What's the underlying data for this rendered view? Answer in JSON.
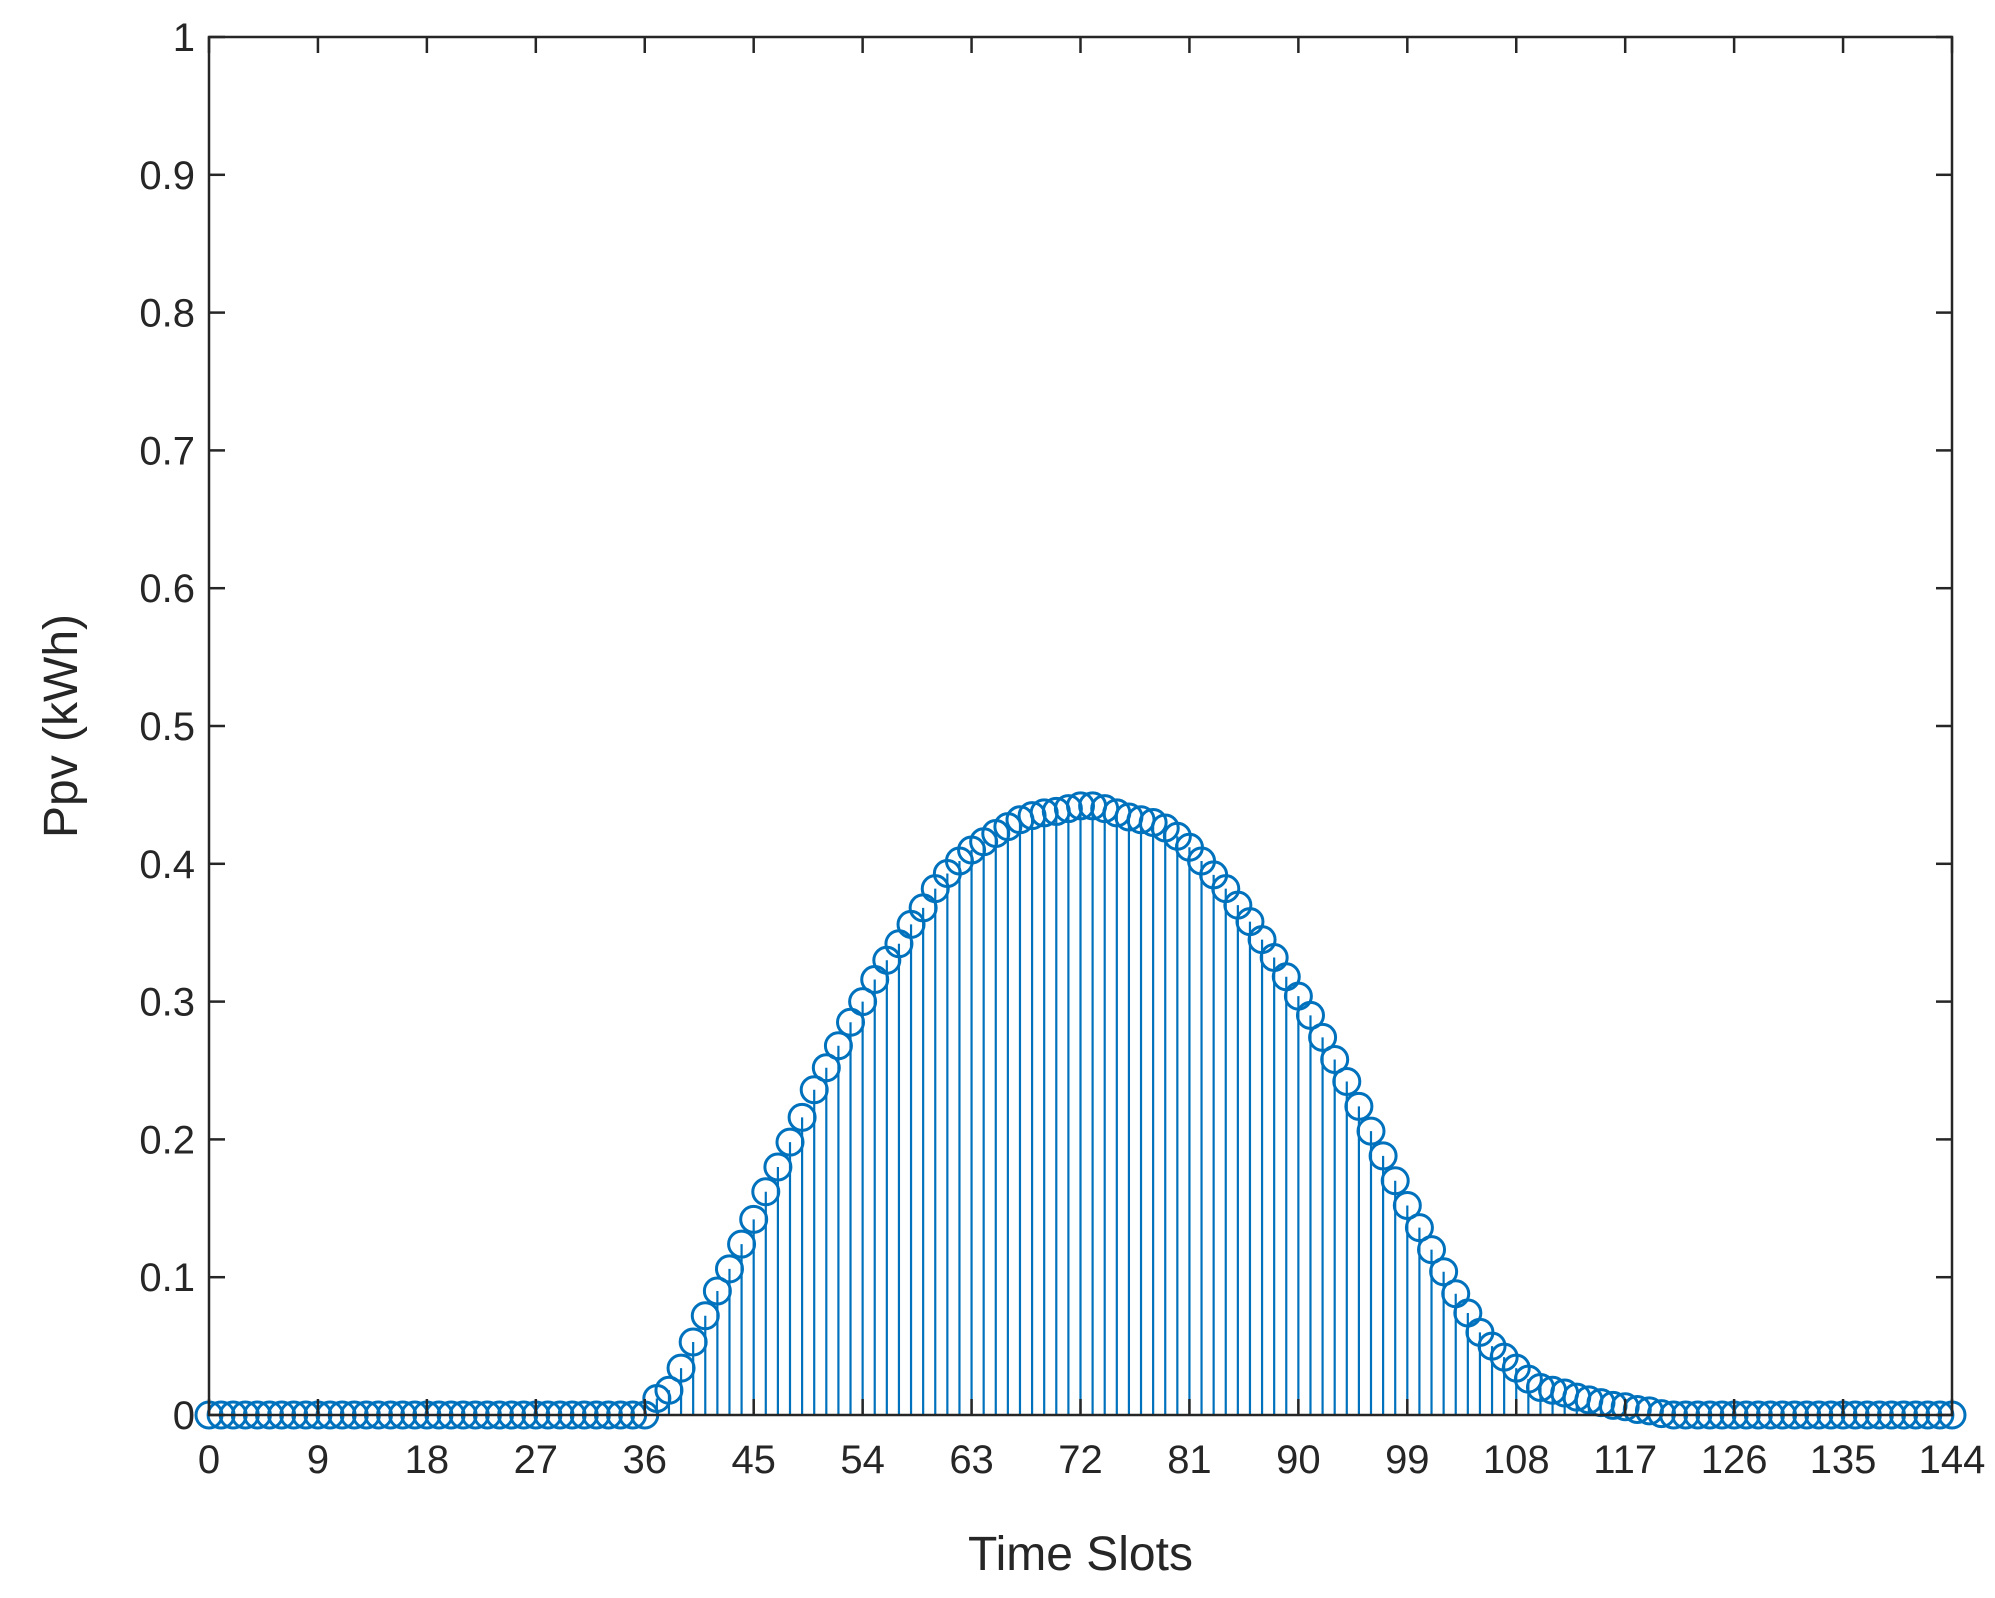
{
  "chart_data": {
    "type": "stem",
    "xlabel": "Time Slots",
    "ylabel": "Ppv (kWh)",
    "xlim": [
      0,
      144
    ],
    "ylim": [
      0,
      1
    ],
    "xticks": [
      0,
      9,
      18,
      27,
      36,
      45,
      54,
      63,
      72,
      81,
      90,
      99,
      108,
      117,
      126,
      135,
      144
    ],
    "yticks": [
      0,
      0.1,
      0.2,
      0.3,
      0.4,
      0.5,
      0.6,
      0.7,
      0.8,
      0.9,
      1
    ],
    "ytick_labels": [
      "0",
      "0.1",
      "0.2",
      "0.3",
      "0.4",
      "0.5",
      "0.6",
      "0.7",
      "0.8",
      "0.9",
      "1"
    ],
    "grid": false,
    "marker": "circle",
    "color": "#0072BD",
    "axis_color": "#262626",
    "series": [
      {
        "x": [
          0,
          1,
          2,
          3,
          4,
          5,
          6,
          7,
          8,
          9,
          10,
          11,
          12,
          13,
          14,
          15,
          16,
          17,
          18,
          19,
          20,
          21,
          22,
          23,
          24,
          25,
          26,
          27,
          28,
          29,
          30,
          31,
          32,
          33,
          34,
          35,
          36,
          37,
          38,
          39,
          40,
          41,
          42,
          43,
          44,
          45,
          46,
          47,
          48,
          49,
          50,
          51,
          52,
          53,
          54,
          55,
          56,
          57,
          58,
          59,
          60,
          61,
          62,
          63,
          64,
          65,
          66,
          67,
          68,
          69,
          70,
          71,
          72,
          73,
          74,
          75,
          76,
          77,
          78,
          79,
          80,
          81,
          82,
          83,
          84,
          85,
          86,
          87,
          88,
          89,
          90,
          91,
          92,
          93,
          94,
          95,
          96,
          97,
          98,
          99,
          100,
          101,
          102,
          103,
          104,
          105,
          106,
          107,
          108,
          109,
          110,
          111,
          112,
          113,
          114,
          115,
          116,
          117,
          118,
          119,
          120,
          121,
          122,
          123,
          124,
          125,
          126,
          127,
          128,
          129,
          130,
          131,
          132,
          133,
          134,
          135,
          136,
          137,
          138,
          139,
          140,
          141,
          142,
          143,
          144
        ],
        "y": [
          0,
          0,
          0,
          0,
          0,
          0,
          0,
          0,
          0,
          0,
          0,
          0,
          0,
          0,
          0,
          0,
          0,
          0,
          0,
          0,
          0,
          0,
          0,
          0,
          0,
          0,
          0,
          0,
          0,
          0,
          0,
          0,
          0,
          0,
          0,
          0,
          0,
          0.012,
          0.018,
          0.034,
          0.053,
          0.072,
          0.09,
          0.106,
          0.124,
          0.142,
          0.162,
          0.18,
          0.198,
          0.216,
          0.236,
          0.252,
          0.268,
          0.285,
          0.3,
          0.316,
          0.33,
          0.342,
          0.356,
          0.368,
          0.382,
          0.393,
          0.402,
          0.41,
          0.416,
          0.422,
          0.427,
          0.432,
          0.435,
          0.437,
          0.438,
          0.44,
          0.442,
          0.442,
          0.44,
          0.437,
          0.434,
          0.432,
          0.43,
          0.426,
          0.42,
          0.412,
          0.402,
          0.392,
          0.382,
          0.37,
          0.358,
          0.345,
          0.332,
          0.318,
          0.304,
          0.29,
          0.274,
          0.258,
          0.242,
          0.224,
          0.206,
          0.188,
          0.17,
          0.152,
          0.136,
          0.12,
          0.104,
          0.088,
          0.074,
          0.06,
          0.05,
          0.042,
          0.034,
          0.026,
          0.02,
          0.018,
          0.016,
          0.013,
          0.011,
          0.009,
          0.007,
          0.006,
          0.004,
          0.003,
          0.001,
          0,
          0,
          0,
          0,
          0,
          0,
          0,
          0,
          0,
          0,
          0,
          0,
          0,
          0,
          0,
          0,
          0,
          0,
          0,
          0,
          0,
          0,
          0,
          0
        ]
      }
    ]
  }
}
